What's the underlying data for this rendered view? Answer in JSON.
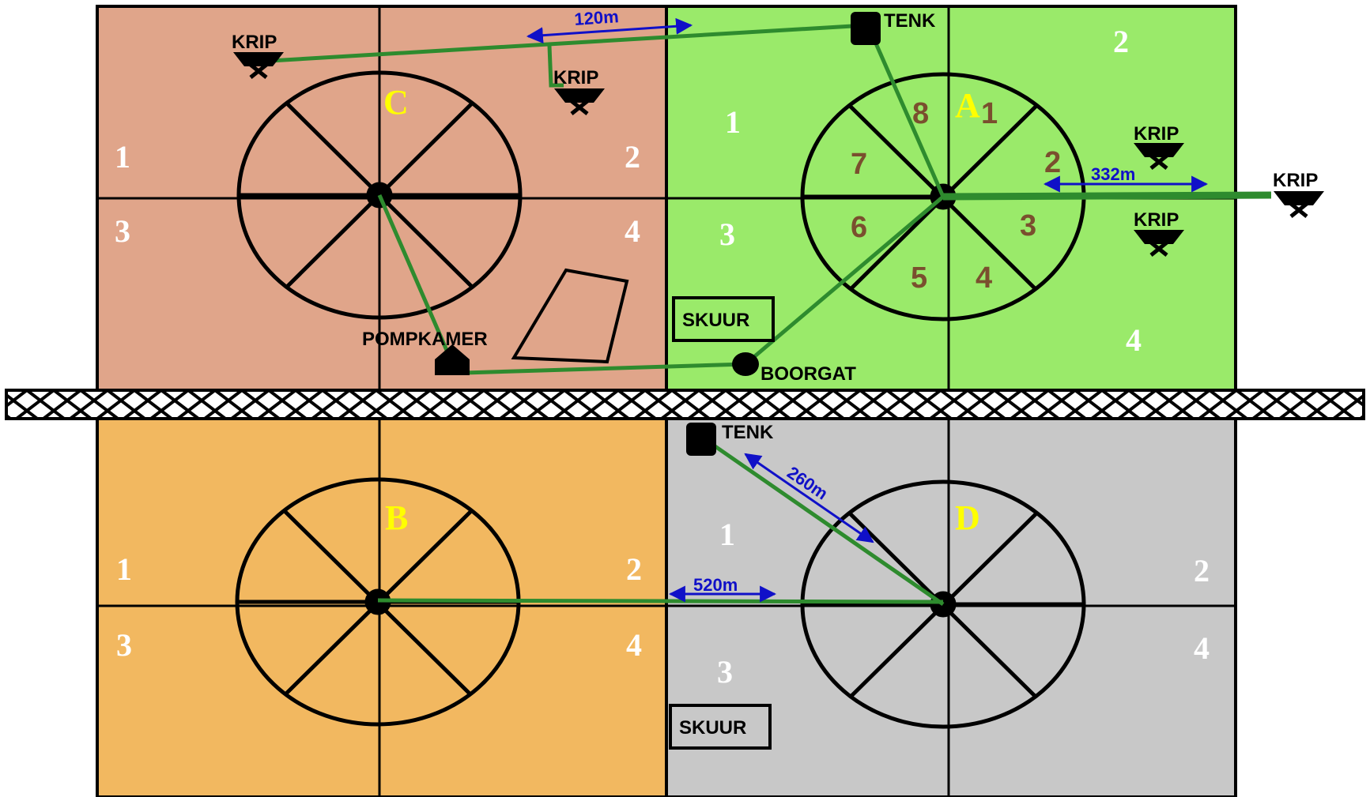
{
  "colors": {
    "plot_c": "#e0a58a",
    "plot_a": "#9aea6a",
    "plot_b": "#f2b860",
    "plot_d": "#c8c8c8",
    "pipe": "#2e8b2e",
    "distance": "#1010c8",
    "plot_letter": "#ffff00",
    "sector_number": "#7a4f2e",
    "camp_number": "#ffffff"
  },
  "plots": {
    "c": {
      "letter": "C",
      "camps": [
        "1",
        "2",
        "3",
        "4"
      ]
    },
    "a": {
      "letter": "A",
      "camps": [
        "1",
        "2",
        "3",
        "4"
      ],
      "sectors": [
        "1",
        "2",
        "3",
        "4",
        "5",
        "6",
        "7",
        "8"
      ]
    },
    "b": {
      "letter": "B",
      "camps": [
        "1",
        "2",
        "3",
        "4"
      ]
    },
    "d": {
      "letter": "D",
      "camps": [
        "1",
        "2",
        "3",
        "4"
      ]
    }
  },
  "labels": {
    "krip": "KRIP",
    "tenk": "TENK",
    "skuur": "SKUUR",
    "pompkamer": "POMPKAMER",
    "boorgat": "BOORGAT"
  },
  "distances": {
    "d120": "120m",
    "d332": "332m",
    "d260": "260m",
    "d520": "520m"
  },
  "icons": {
    "trough": "krip-trough-icon",
    "tank": "tank-icon",
    "pump_house": "pump-house-icon",
    "borehole": "borehole-icon",
    "road": "road-lattice"
  }
}
